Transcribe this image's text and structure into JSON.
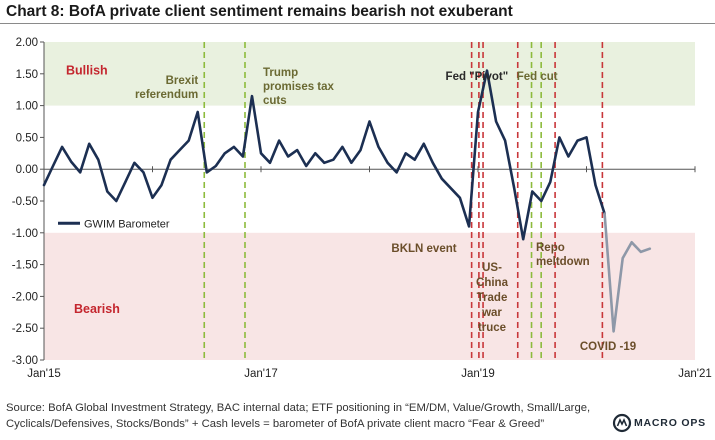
{
  "header": {
    "title": "Chart 8: BofA private client sentiment remains bearish not exuberant"
  },
  "source_note": "Source: BofA Global Investment Strategy, BAC internal data; ETF positioning in “EM/DM, Value/Growth, Small/Large, Cyclicals/Defensives, Stocks/Bonds” + Cash levels = barometer of BofA private client macro “Fear & Greed”",
  "logo": {
    "text": "MACRO OPS"
  },
  "chart_data": {
    "type": "line",
    "title": "",
    "xlabel": "",
    "ylabel": "",
    "ylim": [
      -3.0,
      2.0
    ],
    "xlim": [
      "2015-01",
      "2021-01"
    ],
    "yticks": [
      "2.00",
      "1.50",
      "1.00",
      "0.50",
      "0.00",
      "-0.50",
      "-1.00",
      "-1.50",
      "-2.00",
      "-2.50",
      "-3.00"
    ],
    "xticks": [
      {
        "label": "Jan'15",
        "x": "2015-01-01"
      },
      {
        "label": "Jan'17",
        "x": "2017-01-01"
      },
      {
        "label": "Jan'19",
        "x": "2019-01-01"
      },
      {
        "label": "Jan'21",
        "x": "2021-01-01"
      }
    ],
    "grid": false,
    "legend": {
      "position": "left, below zero line"
    },
    "zones": [
      {
        "label": "Bullish",
        "from": 1.0,
        "to": 2.0,
        "color": "#e9f1df",
        "label_color": "#c4262e"
      },
      {
        "label": "Bearish",
        "from": -3.0,
        "to": -1.0,
        "color": "#f8e5e5",
        "label_color": "#c4262e"
      }
    ],
    "colors": {
      "series_main": "#1c2f52",
      "series_covid": "#8e98a8",
      "green_dash": "#8dbb3c",
      "red_dash": "#c8373a",
      "annotation": "#6b4e2a"
    },
    "event_lines": [
      {
        "x": "2016-06-23",
        "color": "green",
        "label": "Brexit\nreferendum"
      },
      {
        "x": "2016-11-08",
        "color": "green",
        "label": "Trump\npromises tax\ncuts"
      },
      {
        "x": "2018-12-10",
        "color": "red",
        "label": ""
      },
      {
        "x": "2019-01-04",
        "color": "red",
        "label": "Fed \"Pivot\""
      },
      {
        "x": "2019-01-18",
        "color": "red",
        "label": ""
      },
      {
        "x": "2019-05-13",
        "color": "red",
        "label": ""
      },
      {
        "x": "2019-06-29",
        "color": "green",
        "label": ""
      },
      {
        "x": "2019-07-31",
        "color": "green",
        "label": "Fed cut"
      },
      {
        "x": "2019-09-17",
        "color": "red",
        "label": ""
      },
      {
        "x": "2020-02-24",
        "color": "red",
        "label": ""
      }
    ],
    "annotations": [
      {
        "text": "BKLN event",
        "color": "red-brown"
      },
      {
        "text": "US-\nChina\nTrade\nwar\ntruce",
        "color": "red-brown"
      },
      {
        "text": "Repo\nmeltdown",
        "color": "red-brown"
      },
      {
        "text": "COVID -19",
        "color": "red-brown"
      }
    ],
    "series": [
      {
        "name": "GWIM Barometer",
        "x": [
          "2015-01",
          "2015-02",
          "2015-03",
          "2015-04",
          "2015-05",
          "2015-06",
          "2015-07",
          "2015-08",
          "2015-09",
          "2015-10",
          "2015-11",
          "2015-12",
          "2016-01",
          "2016-02",
          "2016-03",
          "2016-04",
          "2016-05",
          "2016-06",
          "2016-07",
          "2016-08",
          "2016-09",
          "2016-10",
          "2016-11",
          "2016-12",
          "2017-01",
          "2017-02",
          "2017-03",
          "2017-04",
          "2017-05",
          "2017-06",
          "2017-07",
          "2017-08",
          "2017-09",
          "2017-10",
          "2017-11",
          "2017-12",
          "2018-01",
          "2018-02",
          "2018-03",
          "2018-04",
          "2018-05",
          "2018-06",
          "2018-07",
          "2018-08",
          "2018-09",
          "2018-10",
          "2018-11",
          "2018-12",
          "2019-01",
          "2019-02",
          "2019-03",
          "2019-04",
          "2019-05",
          "2019-06",
          "2019-07",
          "2019-08",
          "2019-09",
          "2019-10",
          "2019-11",
          "2019-12",
          "2020-01",
          "2020-02",
          "2020-03"
        ],
        "values": [
          -0.25,
          0.05,
          0.35,
          0.12,
          -0.05,
          0.4,
          0.15,
          -0.35,
          -0.5,
          -0.2,
          0.1,
          -0.05,
          -0.45,
          -0.25,
          0.15,
          0.3,
          0.45,
          0.9,
          -0.05,
          0.05,
          0.25,
          0.35,
          0.2,
          1.15,
          0.25,
          0.1,
          0.45,
          0.2,
          0.3,
          0.05,
          0.25,
          0.1,
          0.15,
          0.35,
          0.1,
          0.3,
          0.75,
          0.35,
          0.1,
          -0.05,
          0.25,
          0.15,
          0.4,
          0.1,
          -0.15,
          -0.3,
          -0.45,
          -0.9,
          0.9,
          1.55,
          0.75,
          0.45,
          -0.3,
          -1.1,
          -0.35,
          -0.5,
          -0.2,
          0.5,
          0.2,
          0.45,
          0.5,
          -0.25,
          -0.7
        ]
      },
      {
        "name": "",
        "x": [
          "2020-03",
          "2020-04",
          "2020-05",
          "2020-06",
          "2020-07",
          "2020-08"
        ],
        "values": [
          -0.7,
          -2.55,
          -1.4,
          -1.15,
          -1.3,
          -1.25
        ]
      }
    ]
  }
}
